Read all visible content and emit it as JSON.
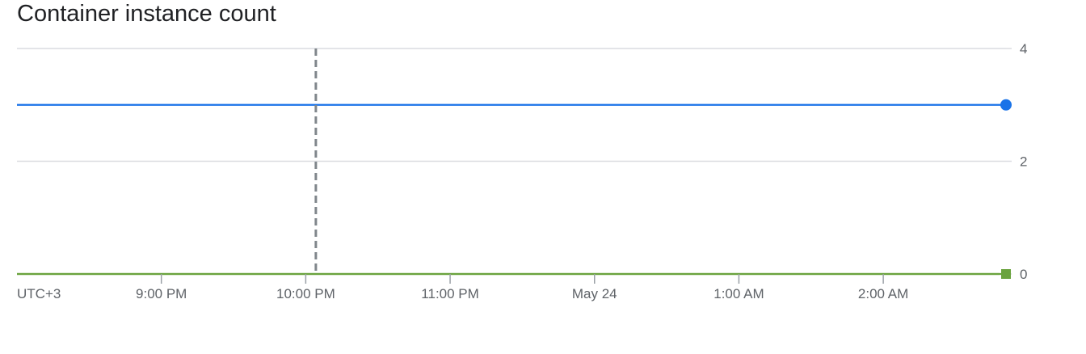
{
  "chart_data": {
    "type": "line",
    "title": "Container instance count",
    "xlabel": "",
    "ylabel": "",
    "timezone_label": "UTC+3",
    "x_ticks": [
      "9:00 PM",
      "10:00 PM",
      "11:00 PM",
      "May 24",
      "1:00 AM",
      "2:00 AM"
    ],
    "x_hours": [
      21,
      22,
      23,
      24,
      25,
      26
    ],
    "x_range_hours": [
      20.0,
      26.85
    ],
    "ylim": [
      0,
      4
    ],
    "y_ticks": [
      "0",
      "2",
      "4"
    ],
    "y_tick_values": [
      0,
      2,
      4
    ],
    "grid": true,
    "cursor_hour": 22.07,
    "series": [
      {
        "x_hours": [
          20.0,
          26.85
        ],
        "values": [
          3,
          3
        ],
        "color": "#1a73e8",
        "marker": "circle"
      },
      {
        "x_hours": [
          20.0,
          26.85
        ],
        "values": [
          0,
          0
        ],
        "color": "#6aa33e",
        "marker": "square"
      }
    ]
  }
}
